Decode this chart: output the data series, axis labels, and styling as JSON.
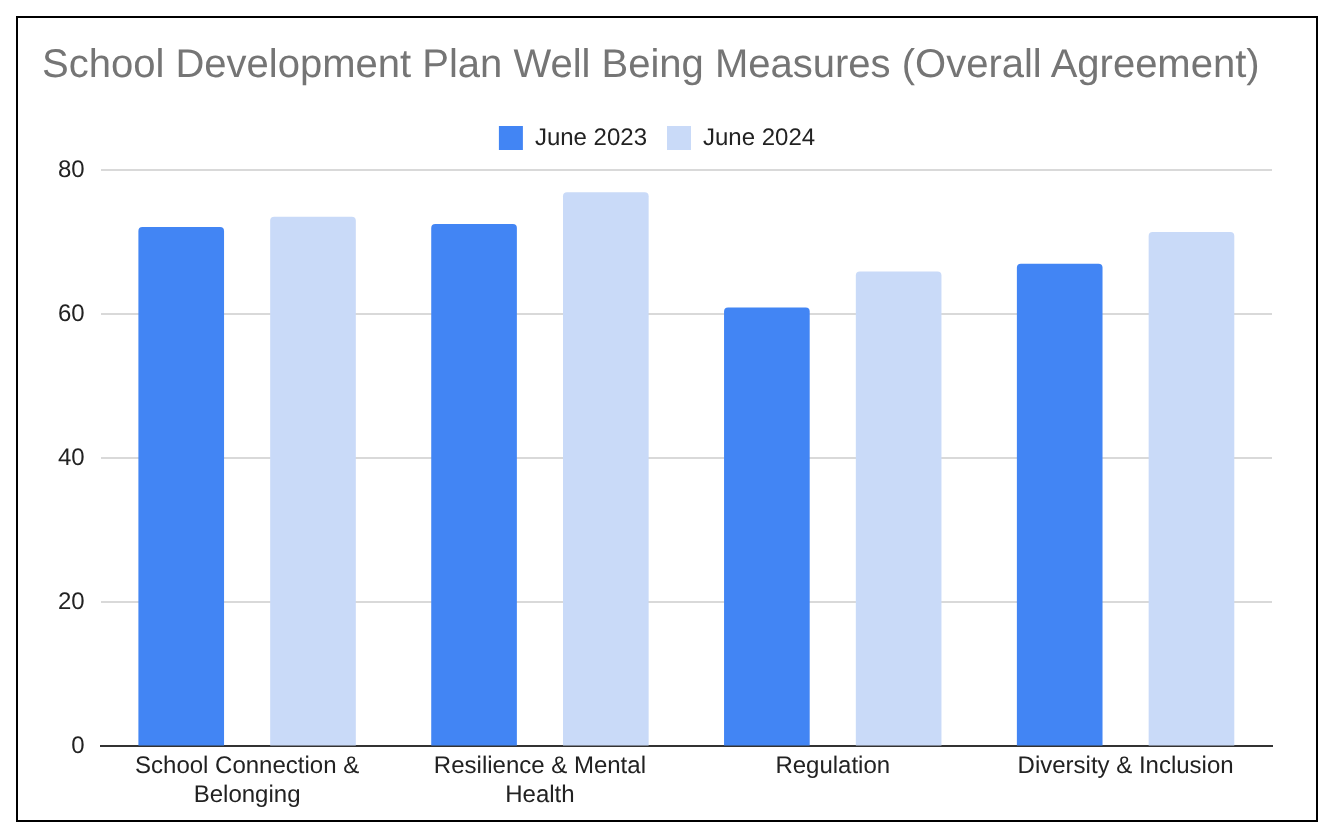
{
  "chart_data": {
    "type": "bar",
    "title": "School Development Plan Well Being Measures (Overall Agreement)",
    "categories": [
      [
        "School Connection &",
        "Belonging"
      ],
      [
        "Resilience & Mental",
        "Health"
      ],
      "Regulation",
      "Diversity & Inclusion"
    ],
    "series": [
      {
        "name": "June 2023",
        "color": "#4285f4",
        "values": [
          72.1,
          72.5,
          60.9,
          67.0
        ]
      },
      {
        "name": "June 2024",
        "color": "#c9daf8",
        "values": [
          73.5,
          76.9,
          65.9,
          71.4
        ]
      }
    ],
    "ylim": [
      0,
      80
    ],
    "yticks": [
      0,
      20,
      40,
      60,
      80
    ],
    "grid": "y",
    "legend": "top"
  }
}
